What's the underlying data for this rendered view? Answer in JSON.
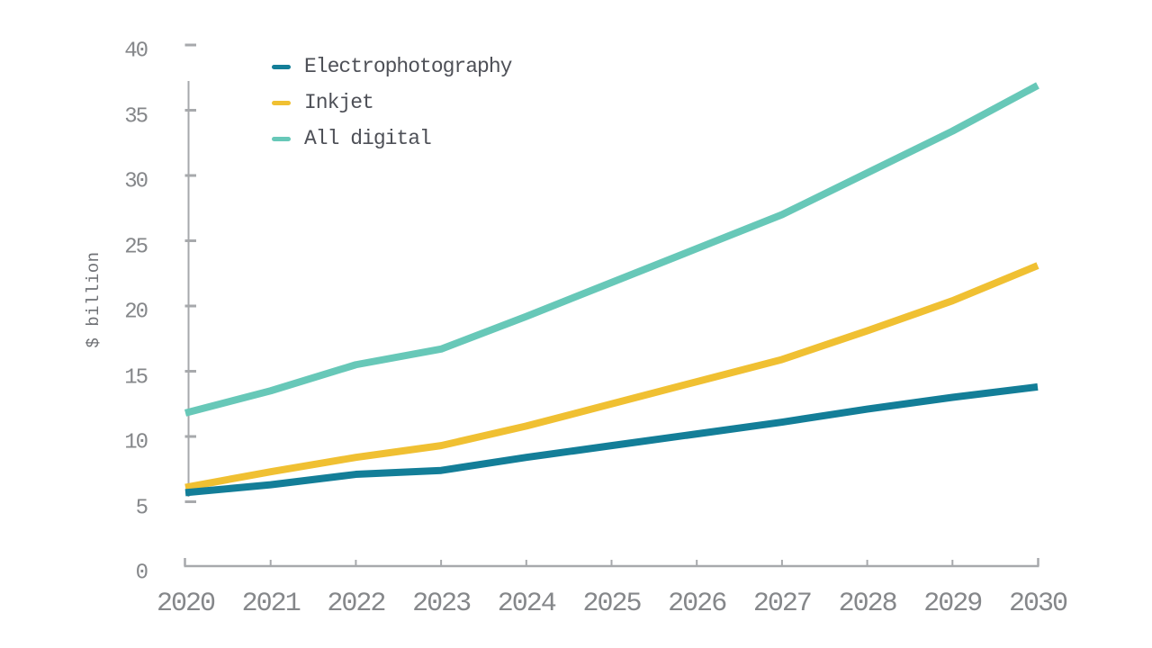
{
  "chart_data": {
    "type": "line",
    "ylabel": "$ billion",
    "x": [
      "2020",
      "2021",
      "2022",
      "2023",
      "2024",
      "2025",
      "2026",
      "2027",
      "2028",
      "2029",
      "2030"
    ],
    "y_ticks": [
      "0",
      "5",
      "10",
      "15",
      "20",
      "25",
      "30",
      "35",
      "40"
    ],
    "ylim": [
      0,
      40
    ],
    "grid": false,
    "legend_position": "top-left",
    "series": [
      {
        "name": "Electrophotography",
        "color": "#137e98",
        "values": [
          5.7,
          6.3,
          7.1,
          7.4,
          8.4,
          9.3,
          10.2,
          11.1,
          12.1,
          13.0,
          13.8
        ]
      },
      {
        "name": "Inkjet",
        "color": "#f0c032",
        "values": [
          6.1,
          7.3,
          8.4,
          9.3,
          10.8,
          12.5,
          14.2,
          15.9,
          18.1,
          20.4,
          23.1
        ]
      },
      {
        "name": "All digital",
        "color": "#67c8b8",
        "values": [
          11.8,
          13.5,
          15.5,
          16.7,
          19.2,
          21.8,
          24.4,
          27.0,
          30.2,
          33.4,
          36.9
        ]
      }
    ]
  },
  "colors": {
    "axis": "#a7a9ac",
    "tick_label": "#85878a",
    "legend_text": "#4e5057",
    "background": "#ffffff"
  }
}
